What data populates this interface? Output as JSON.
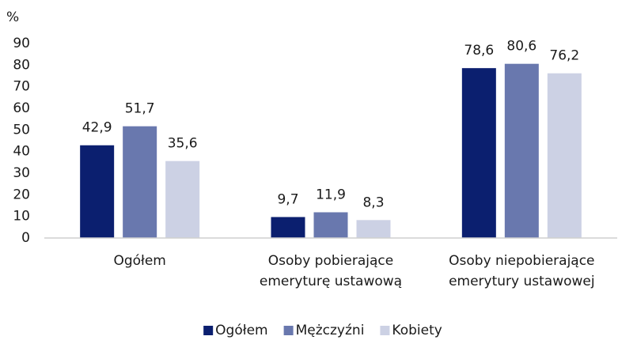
{
  "chart_data": {
    "type": "bar",
    "ylabel": "%",
    "categories": [
      [
        "Ogółem"
      ],
      [
        "Osoby pobierające",
        "emeryturę ustawową"
      ],
      [
        "Osoby niepobierające",
        "emerytury ustawowej"
      ]
    ],
    "series": [
      {
        "name": "Ogółem",
        "color": "#0b1f6f",
        "values": [
          42.9,
          9.7,
          78.6
        ],
        "value_labels": [
          "42,9",
          "9,7",
          "78,6"
        ]
      },
      {
        "name": "Mężczyźni",
        "color": "#6978ae",
        "values": [
          51.7,
          11.9,
          80.6
        ],
        "value_labels": [
          "51,7",
          "11,9",
          "80,6"
        ]
      },
      {
        "name": "Kobiety",
        "color": "#ccd1e4",
        "values": [
          35.6,
          8.3,
          76.2
        ],
        "value_labels": [
          "35,6",
          "8,3",
          "76,2"
        ]
      }
    ],
    "ylim": [
      0,
      90
    ],
    "yticks": [
      0,
      10,
      20,
      30,
      40,
      50,
      60,
      70,
      80,
      90
    ],
    "grid": false,
    "legend": "bottom"
  }
}
